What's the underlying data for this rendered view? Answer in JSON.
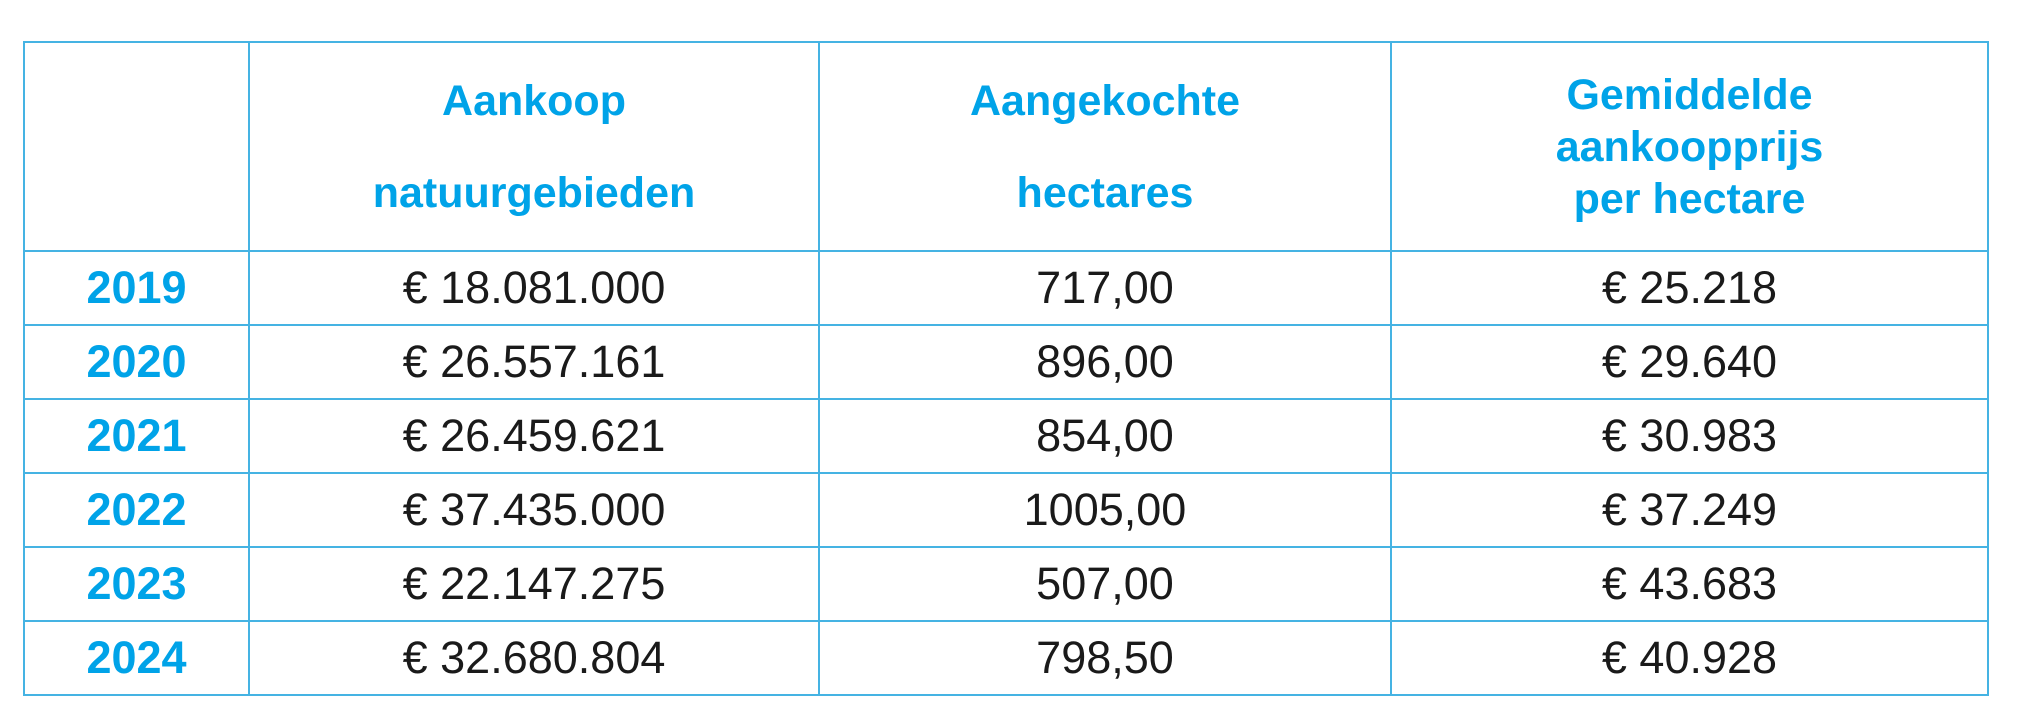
{
  "colors": {
    "header_text": "#00a3e8",
    "border": "#45b3e3",
    "cell_text": "#1a1a1a"
  },
  "chart_data": {
    "type": "table",
    "columns": [
      {
        "key": "year",
        "label_lines": [
          ""
        ]
      },
      {
        "key": "aankoop",
        "label_lines": [
          "Aankoop",
          "natuurgebieden"
        ]
      },
      {
        "key": "hectares",
        "label_lines": [
          "Aangekochte",
          "hectares"
        ]
      },
      {
        "key": "prijs",
        "label_lines": [
          "Gemiddelde",
          "aankoopprijs",
          "per hectare"
        ]
      }
    ],
    "rows": [
      {
        "year": "2019",
        "aankoop": "€ 18.081.000",
        "hectares": "717,00",
        "prijs": "€ 25.218"
      },
      {
        "year": "2020",
        "aankoop": "€ 26.557.161",
        "hectares": "896,00",
        "prijs": "€ 29.640"
      },
      {
        "year": "2021",
        "aankoop": "€ 26.459.621",
        "hectares": "854,00",
        "prijs": "€ 30.983"
      },
      {
        "year": "2022",
        "aankoop": "€ 37.435.000",
        "hectares": "1005,00",
        "prijs": "€ 37.249"
      },
      {
        "year": "2023",
        "aankoop": "€ 22.147.275",
        "hectares": "507,00",
        "prijs": "€ 43.683"
      },
      {
        "year": "2024",
        "aankoop": "€ 32.680.804",
        "hectares": "798,50",
        "prijs": "€ 40.928"
      }
    ]
  }
}
